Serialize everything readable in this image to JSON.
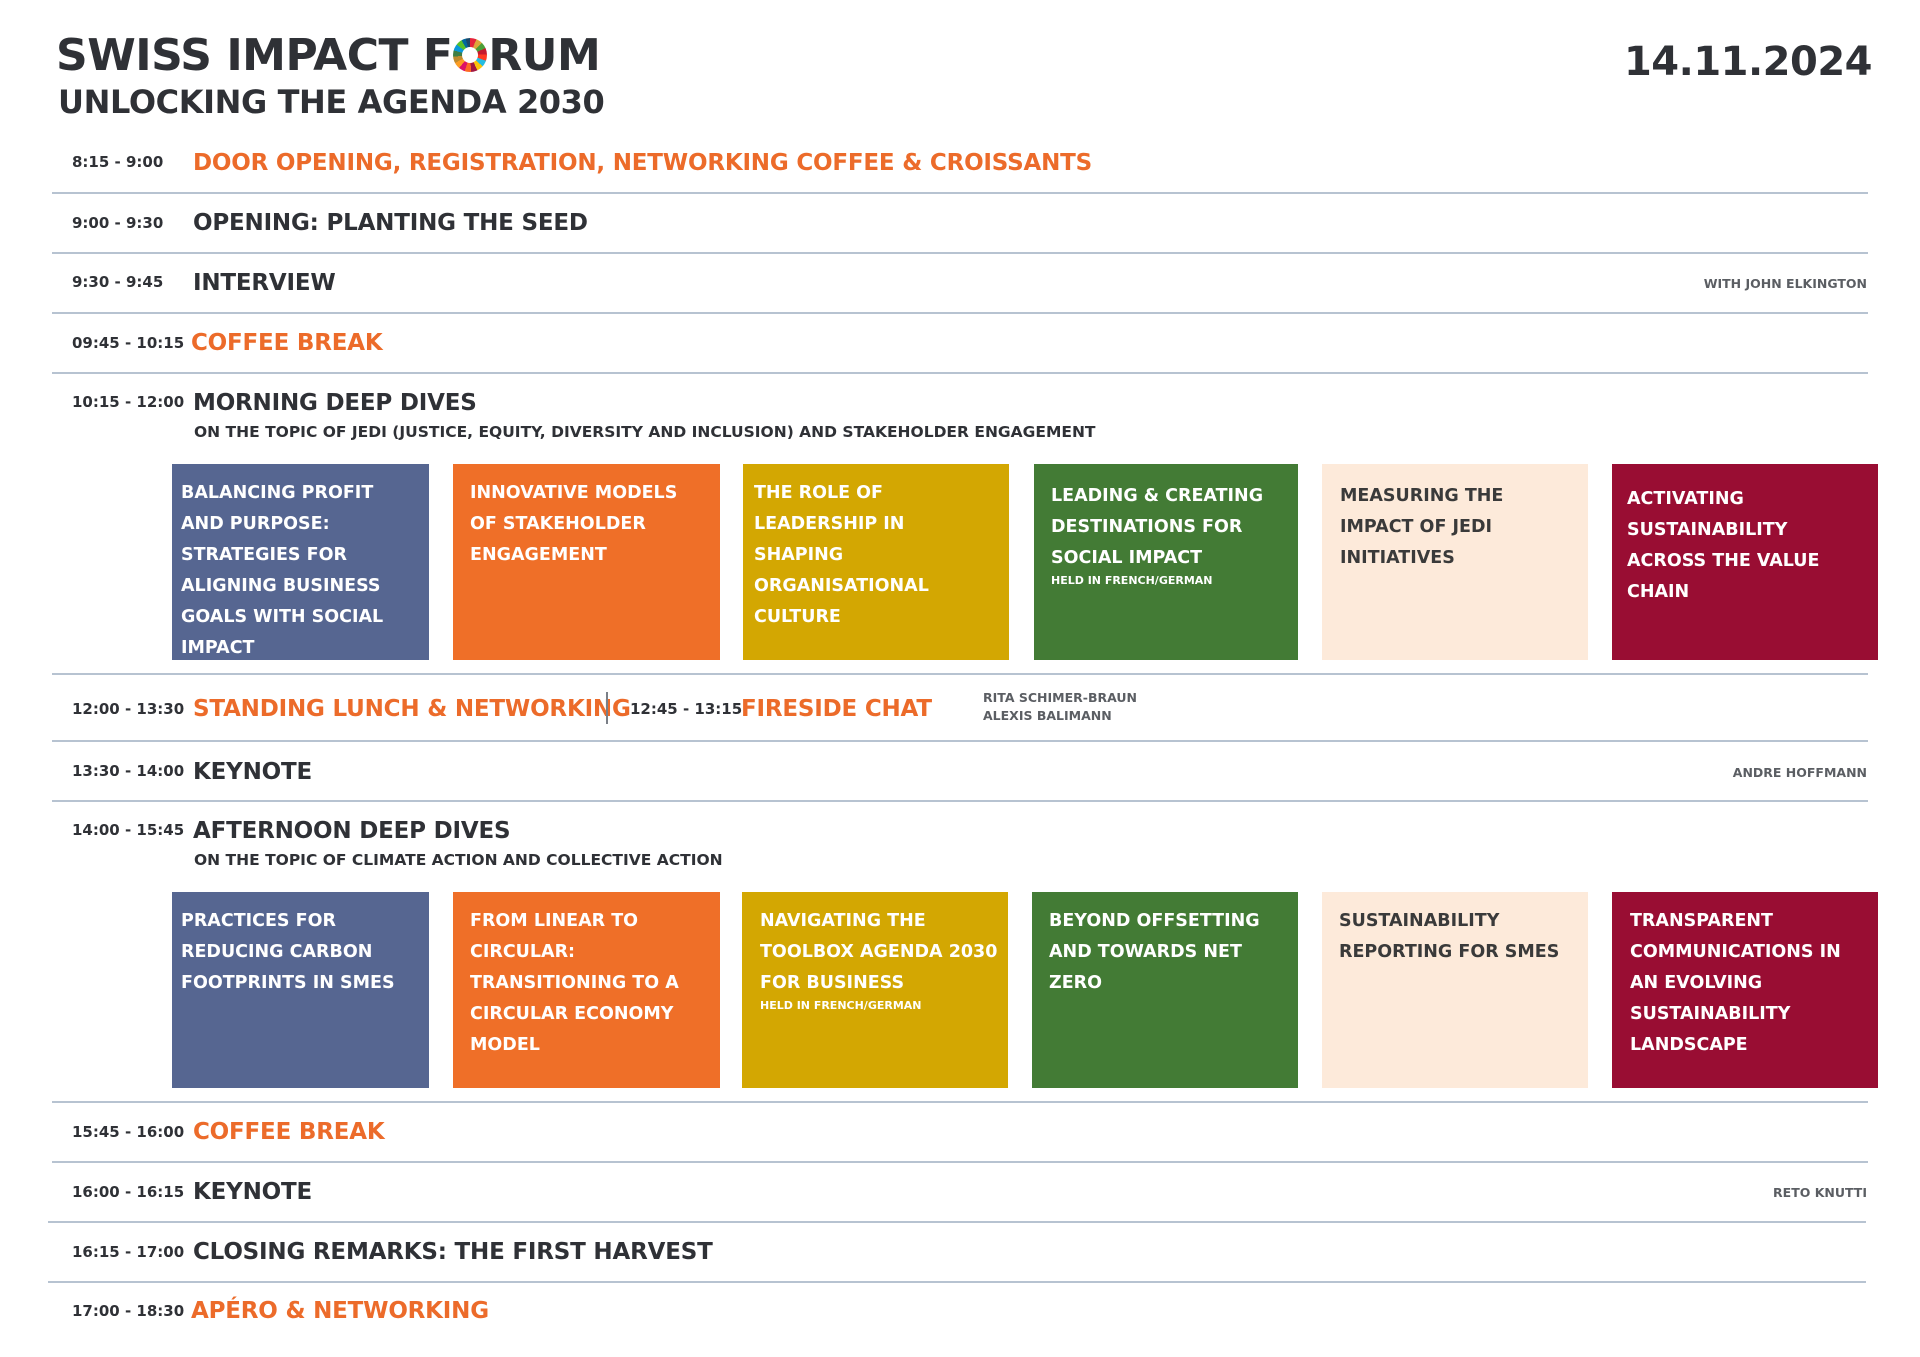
{
  "header": {
    "title_part1": "SWISS IMPACT F",
    "title_part2": "RUM",
    "subtitle": "UNLOCKING THE AGENDA 2030",
    "date": "14.11.2024"
  },
  "schedule": {
    "r1": {
      "time": "8:15 - 9:00",
      "title": "DOOR OPENING, REGISTRATION, NETWORKING COFFEE & CROISSANTS"
    },
    "r2": {
      "time": "9:00 - 9:30",
      "title": "OPENING: PLANTING THE SEED"
    },
    "r3": {
      "time": "9:30 - 9:45",
      "title": "INTERVIEW",
      "speaker": "WITH JOHN ELKINGTON"
    },
    "r4": {
      "time": "09:45 - 10:15",
      "title": "COFFEE BREAK"
    },
    "r5": {
      "time": "10:15 - 12:00",
      "title": "MORNING DEEP DIVES",
      "subtopic": "ON THE TOPIC OF JEDI (JUSTICE, EQUITY, DIVERSITY AND INCLUSION) AND STAKEHOLDER ENGAGEMENT",
      "sessions": [
        {
          "title": "BALANCING PROFIT AND PURPOSE: STRATEGIES FOR ALIGNING BUSINESS GOALS WITH SOCIAL IMPACT",
          "note": ""
        },
        {
          "title": "INNOVATIVE MODELS OF STAKEHOLDER ENGAGEMENT",
          "note": ""
        },
        {
          "title": "THE ROLE OF LEADERSHIP IN SHAPING ORGANISATIONAL CULTURE",
          "note": ""
        },
        {
          "title": "LEADING & CREATING DESTINATIONS FOR SOCIAL IMPACT",
          "note": "HELD IN FRENCH/GERMAN"
        },
        {
          "title": "MEASURING THE IMPACT OF JEDI INITIATIVES",
          "note": ""
        },
        {
          "title": "ACTIVATING SUSTAINABILITY ACROSS THE VALUE CHAIN",
          "note": ""
        }
      ]
    },
    "r6": {
      "time": "12:00 - 13:30",
      "title": "STANDING LUNCH & NETWORKING",
      "time2": "12:45 - 13:15",
      "title2": "FIRESIDE CHAT",
      "speaker_line1": "RITA SCHIMER-BRAUN",
      "speaker_line2": "ALEXIS BALIMANN"
    },
    "r7": {
      "time": "13:30 - 14:00",
      "title": "KEYNOTE",
      "speaker": "ANDRE HOFFMANN"
    },
    "r8": {
      "time": "14:00 - 15:45",
      "title": "AFTERNOON DEEP DIVES",
      "subtopic": "ON THE TOPIC OF CLIMATE ACTION AND COLLECTIVE ACTION",
      "sessions": [
        {
          "title": "PRACTICES FOR REDUCING CARBON FOOTPRINTS IN SMES",
          "note": ""
        },
        {
          "title": "FROM LINEAR TO CIRCULAR: TRANSITIONING TO A CIRCULAR ECONOMY MODEL",
          "note": ""
        },
        {
          "title": "NAVIGATING THE TOOLBOX AGENDA 2030 FOR BUSINESS",
          "note": "HELD IN FRENCH/GERMAN"
        },
        {
          "title": "BEYOND OFFSETTING AND TOWARDS NET ZERO",
          "note": ""
        },
        {
          "title": "SUSTAINABILITY REPORTING FOR SMES",
          "note": ""
        },
        {
          "title": "TRANSPARENT COMMUNICATIONS IN AN EVOLVING SUSTAINABILITY LANDSCAPE",
          "note": ""
        }
      ]
    },
    "r9": {
      "time": "15:45 - 16:00",
      "title": "COFFEE BREAK"
    },
    "r10": {
      "time": "16:00 - 16:15",
      "title": "KEYNOTE",
      "speaker": "RETO KNUTTI"
    },
    "r11": {
      "time": "16:15 - 17:00",
      "title": "CLOSING REMARKS: THE FIRST HARVEST"
    },
    "r12": {
      "time": "17:00 - 18:30",
      "title": "APÉRO & NETWORKING"
    }
  },
  "colors": {
    "accent_orange": "#ec6b2a",
    "text_dark": "#2f3136",
    "divider": "#b7c3d1",
    "session_blue": "#566691",
    "session_orange": "#ef6f28",
    "session_gold": "#d3a702",
    "session_green": "#437b35",
    "session_cream": "#fdeada",
    "session_red": "#990d33"
  }
}
